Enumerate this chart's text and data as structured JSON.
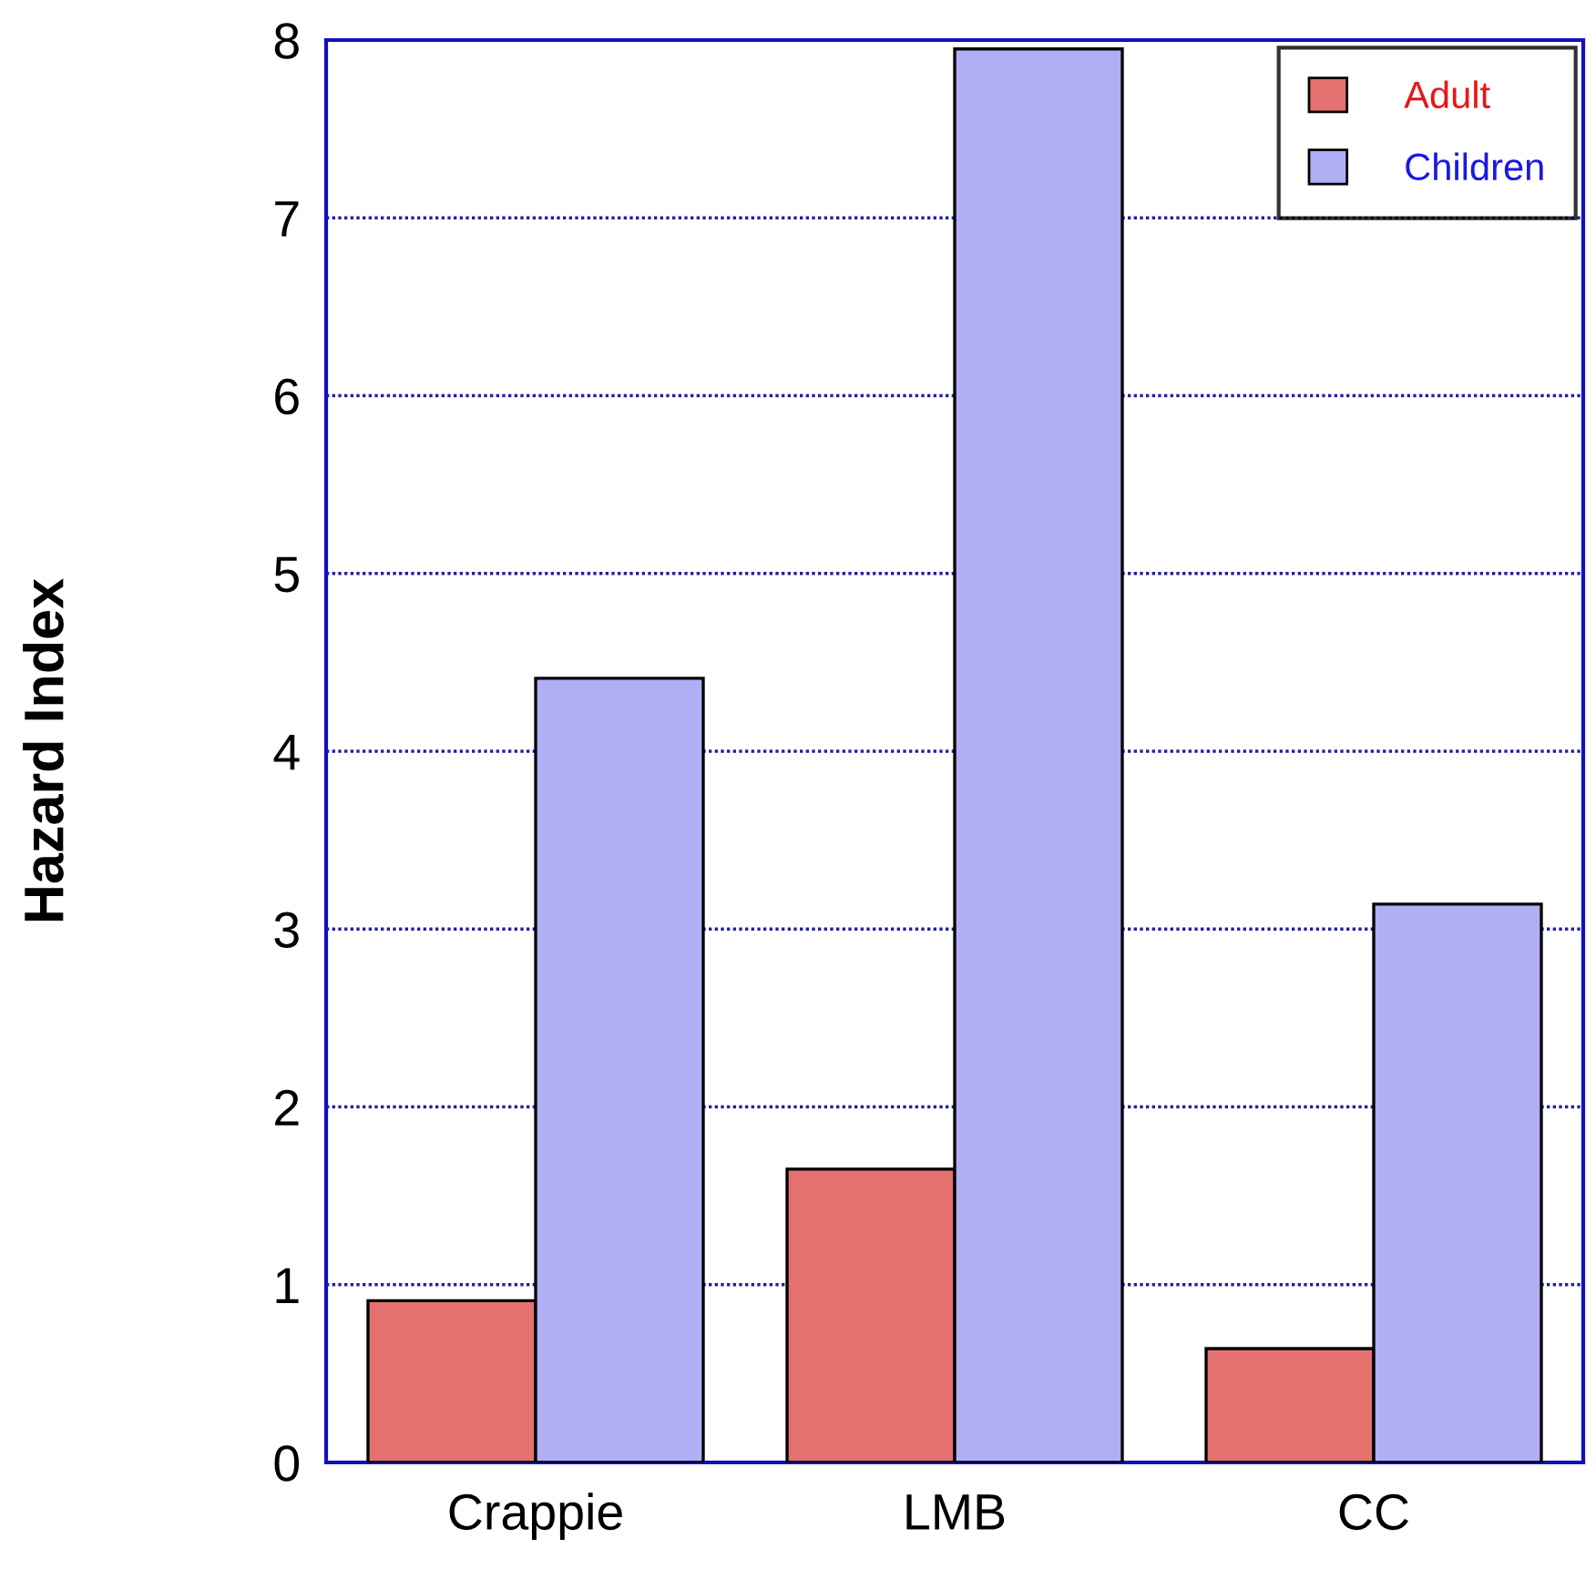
{
  "chart_data": {
    "type": "bar",
    "ylabel": "Hazard Index",
    "categories": [
      "Crappie",
      "LMB",
      "CC"
    ],
    "series": [
      {
        "name": "Adult",
        "color": "#e57070",
        "values": [
          0.91,
          1.65,
          0.64
        ]
      },
      {
        "name": "Children",
        "color": "#b0aff5",
        "values": [
          4.41,
          7.95,
          3.14
        ]
      }
    ],
    "ylim": [
      0,
      8
    ],
    "yticks": [
      0,
      1,
      2,
      3,
      4,
      5,
      6,
      7,
      8
    ],
    "grid": "y",
    "legend": "top right"
  }
}
